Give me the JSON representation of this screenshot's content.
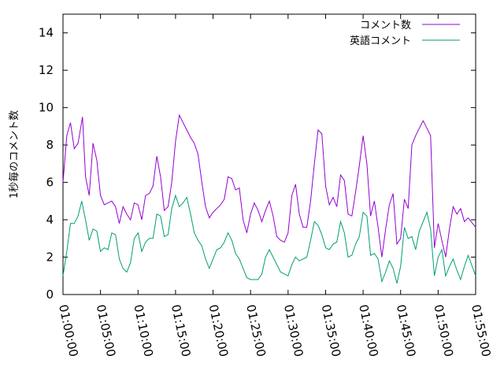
{
  "chart_data": {
    "type": "line",
    "title": "",
    "xlabel": "",
    "ylabel": "1秒毎のコメント数",
    "ylim": [
      0,
      15
    ],
    "yticks": [
      0,
      2,
      4,
      6,
      8,
      10,
      12,
      14
    ],
    "xlim_minutes": [
      0,
      55
    ],
    "xticks": [
      {
        "minutes": 0,
        "label": "01:00:00"
      },
      {
        "minutes": 5,
        "label": "01:05:00"
      },
      {
        "minutes": 10,
        "label": "01:10:00"
      },
      {
        "minutes": 15,
        "label": "01:15:00"
      },
      {
        "minutes": 20,
        "label": "01:20:00"
      },
      {
        "minutes": 25,
        "label": "01:25:00"
      },
      {
        "minutes": 30,
        "label": "01:30:00"
      },
      {
        "minutes": 35,
        "label": "01:35:00"
      },
      {
        "minutes": 40,
        "label": "01:40:00"
      },
      {
        "minutes": 45,
        "label": "01:45:00"
      },
      {
        "minutes": 50,
        "label": "01:50:00"
      },
      {
        "minutes": 55,
        "label": "01:55:00"
      }
    ],
    "grid": false,
    "legend_position": "top-right",
    "series": [
      {
        "name": "コメント数",
        "color": "#9400d3",
        "points": [
          [
            0.0,
            6.0
          ],
          [
            0.5,
            8.5
          ],
          [
            1.0,
            9.2
          ],
          [
            1.5,
            7.8
          ],
          [
            2.0,
            8.1
          ],
          [
            2.6,
            9.5
          ],
          [
            3.0,
            6.3
          ],
          [
            3.5,
            5.3
          ],
          [
            4.0,
            8.1
          ],
          [
            4.5,
            7.2
          ],
          [
            5.0,
            5.3
          ],
          [
            5.5,
            4.8
          ],
          [
            6.0,
            4.9
          ],
          [
            6.5,
            5.0
          ],
          [
            7.0,
            4.7
          ],
          [
            7.5,
            3.8
          ],
          [
            8.0,
            4.7
          ],
          [
            8.5,
            4.3
          ],
          [
            9.0,
            4.0
          ],
          [
            9.5,
            4.9
          ],
          [
            10.0,
            4.8
          ],
          [
            10.5,
            4.0
          ],
          [
            11.0,
            5.3
          ],
          [
            11.5,
            5.4
          ],
          [
            12.0,
            5.8
          ],
          [
            12.5,
            7.4
          ],
          [
            13.0,
            6.3
          ],
          [
            13.5,
            4.5
          ],
          [
            14.0,
            4.7
          ],
          [
            14.5,
            6.0
          ],
          [
            15.0,
            8.2
          ],
          [
            15.5,
            9.6
          ],
          [
            16.0,
            9.2
          ],
          [
            16.5,
            8.8
          ],
          [
            17.0,
            8.4
          ],
          [
            17.5,
            8.1
          ],
          [
            18.0,
            7.5
          ],
          [
            18.5,
            6.0
          ],
          [
            19.0,
            4.7
          ],
          [
            19.5,
            4.1
          ],
          [
            20.0,
            4.4
          ],
          [
            20.5,
            4.6
          ],
          [
            21.0,
            4.8
          ],
          [
            21.5,
            5.1
          ],
          [
            22.0,
            6.3
          ],
          [
            22.5,
            6.2
          ],
          [
            23.0,
            5.6
          ],
          [
            23.5,
            5.7
          ],
          [
            24.0,
            4.0
          ],
          [
            24.5,
            3.3
          ],
          [
            25.0,
            4.3
          ],
          [
            25.5,
            4.9
          ],
          [
            26.0,
            4.5
          ],
          [
            26.5,
            3.9
          ],
          [
            27.0,
            4.5
          ],
          [
            27.5,
            5.0
          ],
          [
            28.0,
            4.2
          ],
          [
            28.5,
            3.1
          ],
          [
            29.0,
            2.9
          ],
          [
            29.5,
            2.8
          ],
          [
            30.0,
            3.3
          ],
          [
            30.5,
            5.3
          ],
          [
            31.0,
            5.9
          ],
          [
            31.5,
            4.3
          ],
          [
            32.0,
            3.6
          ],
          [
            32.5,
            3.6
          ],
          [
            33.0,
            5.0
          ],
          [
            33.5,
            7.0
          ],
          [
            34.0,
            8.8
          ],
          [
            34.5,
            8.6
          ],
          [
            35.0,
            5.8
          ],
          [
            35.5,
            4.8
          ],
          [
            36.0,
            5.2
          ],
          [
            36.5,
            4.7
          ],
          [
            37.0,
            6.4
          ],
          [
            37.5,
            6.1
          ],
          [
            38.0,
            4.3
          ],
          [
            38.5,
            4.2
          ],
          [
            39.0,
            5.5
          ],
          [
            39.5,
            6.9
          ],
          [
            40.0,
            8.5
          ],
          [
            40.5,
            7.0
          ],
          [
            41.0,
            4.2
          ],
          [
            41.5,
            5.0
          ],
          [
            42.0,
            3.6
          ],
          [
            42.5,
            2.0
          ],
          [
            43.0,
            3.5
          ],
          [
            43.5,
            4.8
          ],
          [
            44.0,
            5.4
          ],
          [
            44.5,
            2.7
          ],
          [
            45.0,
            3.0
          ],
          [
            45.5,
            5.1
          ],
          [
            46.0,
            4.6
          ],
          [
            46.5,
            8.0
          ],
          [
            47.0,
            8.5
          ],
          [
            47.5,
            8.9
          ],
          [
            48.0,
            9.3
          ],
          [
            48.5,
            8.9
          ],
          [
            49.0,
            8.5
          ],
          [
            49.5,
            2.5
          ],
          [
            50.0,
            3.8
          ],
          [
            50.5,
            2.9
          ],
          [
            51.0,
            2.0
          ],
          [
            51.5,
            3.5
          ],
          [
            52.0,
            4.7
          ],
          [
            52.5,
            4.3
          ],
          [
            53.0,
            4.6
          ],
          [
            53.5,
            3.9
          ],
          [
            54.0,
            4.1
          ],
          [
            55.0,
            3.6
          ]
        ]
      },
      {
        "name": "英語コメント",
        "color": "#009e73",
        "points": [
          [
            0.0,
            1.0
          ],
          [
            0.5,
            2.3
          ],
          [
            1.0,
            3.8
          ],
          [
            1.5,
            3.8
          ],
          [
            2.0,
            4.2
          ],
          [
            2.5,
            5.0
          ],
          [
            3.0,
            4.0
          ],
          [
            3.5,
            2.9
          ],
          [
            4.0,
            3.5
          ],
          [
            4.5,
            3.4
          ],
          [
            5.0,
            2.3
          ],
          [
            5.5,
            2.5
          ],
          [
            6.0,
            2.4
          ],
          [
            6.5,
            3.3
          ],
          [
            7.0,
            3.2
          ],
          [
            7.5,
            1.9
          ],
          [
            8.0,
            1.4
          ],
          [
            8.5,
            1.2
          ],
          [
            9.0,
            1.7
          ],
          [
            9.5,
            3.0
          ],
          [
            10.0,
            3.3
          ],
          [
            10.5,
            2.3
          ],
          [
            11.0,
            2.8
          ],
          [
            11.5,
            3.0
          ],
          [
            12.0,
            3.0
          ],
          [
            12.5,
            4.3
          ],
          [
            13.0,
            4.2
          ],
          [
            13.5,
            3.1
          ],
          [
            14.0,
            3.2
          ],
          [
            14.5,
            4.6
          ],
          [
            15.0,
            5.3
          ],
          [
            15.5,
            4.7
          ],
          [
            16.0,
            4.9
          ],
          [
            16.5,
            5.2
          ],
          [
            17.0,
            4.3
          ],
          [
            17.5,
            3.3
          ],
          [
            18.0,
            2.9
          ],
          [
            18.5,
            2.6
          ],
          [
            19.0,
            1.9
          ],
          [
            19.5,
            1.4
          ],
          [
            20.0,
            1.9
          ],
          [
            20.5,
            2.4
          ],
          [
            21.0,
            2.5
          ],
          [
            21.5,
            2.8
          ],
          [
            22.0,
            3.3
          ],
          [
            22.5,
            2.9
          ],
          [
            23.0,
            2.2
          ],
          [
            23.5,
            1.9
          ],
          [
            24.0,
            1.4
          ],
          [
            24.5,
            0.9
          ],
          [
            25.0,
            0.8
          ],
          [
            25.5,
            0.8
          ],
          [
            26.0,
            0.8
          ],
          [
            26.5,
            1.1
          ],
          [
            27.0,
            2.0
          ],
          [
            27.5,
            2.4
          ],
          [
            28.0,
            2.0
          ],
          [
            28.5,
            1.6
          ],
          [
            29.0,
            1.2
          ],
          [
            29.5,
            1.1
          ],
          [
            30.0,
            1.0
          ],
          [
            30.5,
            1.6
          ],
          [
            31.0,
            2.0
          ],
          [
            31.5,
            1.8
          ],
          [
            32.0,
            1.9
          ],
          [
            32.5,
            2.0
          ],
          [
            33.0,
            2.9
          ],
          [
            33.5,
            3.9
          ],
          [
            34.0,
            3.7
          ],
          [
            34.5,
            3.2
          ],
          [
            35.0,
            2.5
          ],
          [
            35.5,
            2.4
          ],
          [
            36.0,
            2.7
          ],
          [
            36.5,
            2.8
          ],
          [
            37.0,
            3.9
          ],
          [
            37.5,
            3.3
          ],
          [
            38.0,
            2.0
          ],
          [
            38.5,
            2.1
          ],
          [
            39.0,
            2.7
          ],
          [
            39.5,
            3.1
          ],
          [
            40.0,
            4.4
          ],
          [
            40.5,
            4.2
          ],
          [
            41.0,
            2.1
          ],
          [
            41.5,
            2.2
          ],
          [
            42.0,
            1.9
          ],
          [
            42.5,
            0.7
          ],
          [
            43.0,
            1.2
          ],
          [
            43.5,
            1.8
          ],
          [
            44.0,
            1.4
          ],
          [
            44.5,
            0.6
          ],
          [
            45.0,
            1.5
          ],
          [
            45.5,
            3.6
          ],
          [
            46.0,
            3.0
          ],
          [
            46.5,
            3.1
          ],
          [
            47.0,
            2.4
          ],
          [
            47.5,
            3.4
          ],
          [
            48.0,
            3.9
          ],
          [
            48.5,
            4.4
          ],
          [
            49.0,
            3.5
          ],
          [
            49.5,
            1.0
          ],
          [
            50.0,
            2.0
          ],
          [
            50.5,
            2.4
          ],
          [
            51.0,
            1.0
          ],
          [
            51.5,
            1.5
          ],
          [
            52.0,
            1.9
          ],
          [
            52.5,
            1.3
          ],
          [
            53.0,
            0.8
          ],
          [
            53.5,
            1.5
          ],
          [
            54.0,
            2.1
          ],
          [
            55.0,
            1.0
          ]
        ]
      }
    ]
  }
}
